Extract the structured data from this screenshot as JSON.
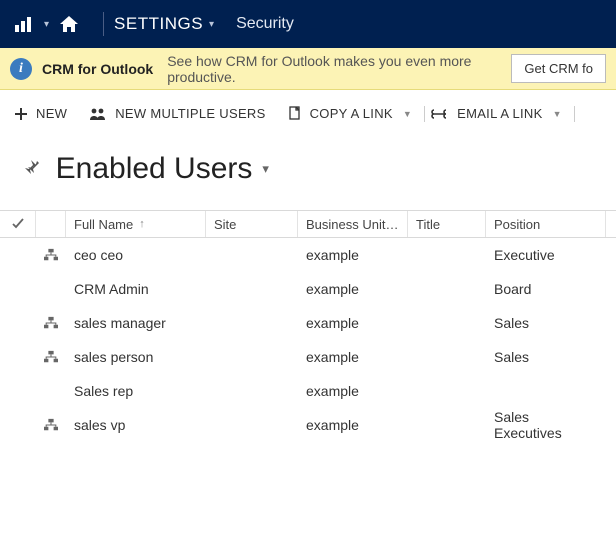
{
  "colors": {
    "navbar_bg": "#002050",
    "banner_bg": "#fcf3b5",
    "info_icon_bg": "#3b7bbf"
  },
  "topnav": {
    "settings_label": "SETTINGS",
    "security_label": "Security"
  },
  "banner": {
    "title": "CRM for Outlook",
    "text": "See how CRM for Outlook makes you even more productive.",
    "button_label": "Get CRM fo"
  },
  "commands": {
    "new": "NEW",
    "new_multiple": "NEW MULTIPLE USERS",
    "copy_link": "COPY A LINK",
    "email_link": "EMAIL A LINK"
  },
  "view": {
    "title": "Enabled Users"
  },
  "grid": {
    "columns": {
      "full_name": "Full Name",
      "site": "Site",
      "business_unit": "Business Unit…",
      "title": "Title",
      "position": "Position"
    },
    "rows": [
      {
        "has_hierarchy": true,
        "full_name": "ceo ceo",
        "site": "",
        "business_unit": "example",
        "title": "",
        "position": "Executive"
      },
      {
        "has_hierarchy": false,
        "full_name": "CRM Admin",
        "site": "",
        "business_unit": "example",
        "title": "",
        "position": "Board"
      },
      {
        "has_hierarchy": true,
        "full_name": "sales manager",
        "site": "",
        "business_unit": "example",
        "title": "",
        "position": "Sales"
      },
      {
        "has_hierarchy": true,
        "full_name": "sales person",
        "site": "",
        "business_unit": "example",
        "title": "",
        "position": "Sales"
      },
      {
        "has_hierarchy": false,
        "full_name": "Sales rep",
        "site": "",
        "business_unit": "example",
        "title": "",
        "position": ""
      },
      {
        "has_hierarchy": true,
        "full_name": "sales vp",
        "site": "",
        "business_unit": "example",
        "title": "",
        "position": "Sales Executives"
      }
    ]
  }
}
